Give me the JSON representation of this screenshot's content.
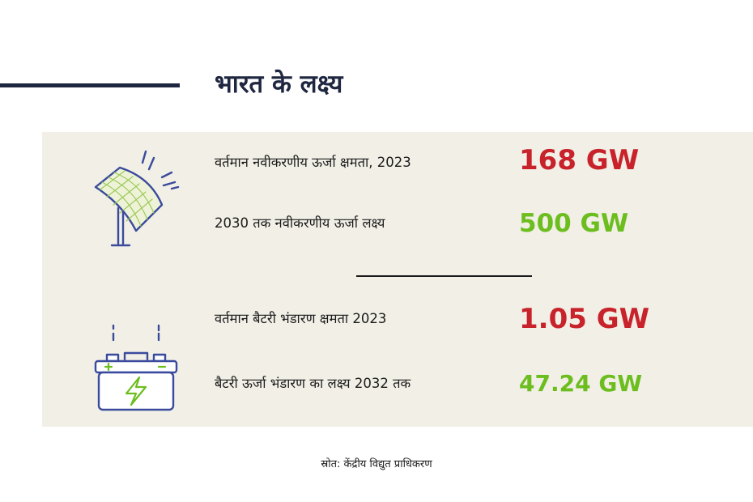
{
  "title": "भारत के लक्ष्य",
  "colors": {
    "title": "#1f2640",
    "current_value": "#c8222b",
    "target_value": "#6cbd1e",
    "panel_bg": "#f1efe6",
    "icon_stroke": "#3a4a9c"
  },
  "renewable": {
    "icon": "solar-panel-icon",
    "current_label": "वर्तमान नवीकरणीय ऊर्जा क्षमता, 2023",
    "current_value": "168 GW",
    "target_label": "2030 तक नवीकरणीय ऊर्जा लक्ष्य",
    "target_value": "500 GW"
  },
  "battery": {
    "icon": "battery-icon",
    "current_label": "वर्तमान बैटरी भंडारण क्षमता 2023",
    "current_value": "1.05 GW",
    "target_label": "बैटरी ऊर्जा भंडारण का लक्ष्य 2032 तक",
    "target_value": "47.24 GW"
  },
  "source": "स्रोत: केंद्रीय विद्युत प्राधिकरण"
}
